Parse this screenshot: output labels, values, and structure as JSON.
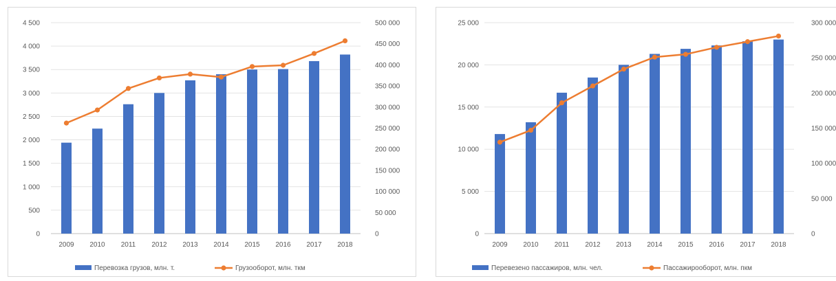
{
  "chart_data": [
    {
      "type": "bar",
      "categories": [
        "2009",
        "2010",
        "2011",
        "2012",
        "2013",
        "2014",
        "2015",
        "2016",
        "2017",
        "2018"
      ],
      "series": [
        {
          "name": "Перевозка грузов, млн. т.",
          "type": "bar",
          "axis": "left",
          "color": "#4472C4",
          "values": [
            1940,
            2240,
            2760,
            3000,
            3270,
            3400,
            3500,
            3510,
            3680,
            3820
          ]
        },
        {
          "name": "Грузооборот, млн. ткм",
          "type": "line",
          "axis": "right",
          "color": "#ED7D31",
          "values": [
            262000,
            293000,
            344000,
            369000,
            378000,
            371000,
            396000,
            399000,
            427000,
            457000
          ]
        }
      ],
      "ylim": [
        0,
        4500
      ],
      "y_ticks": [
        "0",
        "500",
        "1 000",
        "1 500",
        "2 000",
        "2 500",
        "3 000",
        "3 500",
        "4 000",
        "4 500"
      ],
      "y2lim": [
        0,
        500000
      ],
      "y2_ticks": [
        "0",
        "50 000",
        "100 000",
        "150 000",
        "200 000",
        "250 000",
        "300 000",
        "350 000",
        "400 000",
        "450 000",
        "500 000"
      ],
      "grid": true,
      "legend_position": "bottom"
    },
    {
      "type": "bar",
      "categories": [
        "2009",
        "2010",
        "2011",
        "2012",
        "2013",
        "2014",
        "2015",
        "2016",
        "2017",
        "2018"
      ],
      "series": [
        {
          "name": "Перевезено пассажиров, млн. чел.",
          "type": "bar",
          "axis": "left",
          "color": "#4472C4",
          "values": [
            11800,
            13200,
            16700,
            18500,
            20000,
            21300,
            21900,
            22300,
            22800,
            23000
          ]
        },
        {
          "name": "Пассажирооборот, млн. пкм",
          "type": "line",
          "axis": "right",
          "color": "#ED7D31",
          "values": [
            130000,
            147000,
            186000,
            210000,
            234000,
            251000,
            255000,
            265000,
            273000,
            281000
          ]
        }
      ],
      "ylim": [
        0,
        25000
      ],
      "y_ticks": [
        "0",
        "5 000",
        "10 000",
        "15 000",
        "20 000",
        "25 000"
      ],
      "y2lim": [
        0,
        300000
      ],
      "y2_ticks": [
        "0",
        "50 000",
        "100 000",
        "150 000",
        "200 000",
        "250 000",
        "300 000"
      ],
      "grid": true,
      "legend_position": "bottom"
    }
  ]
}
